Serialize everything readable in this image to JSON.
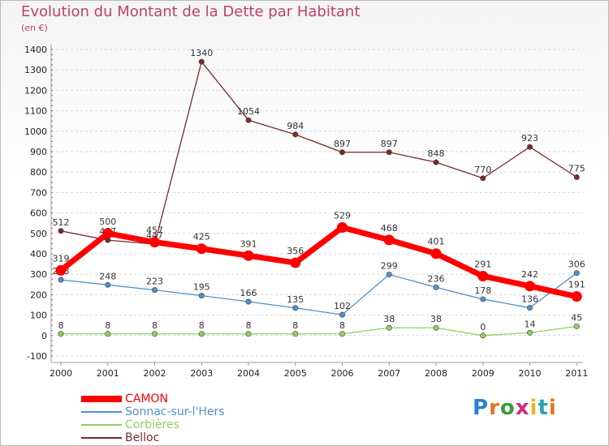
{
  "title": "Evolution du Montant de la Dette par Habitant",
  "unit": "(en €)",
  "logo": "Proxiti",
  "colors": {
    "title": "#c0416c",
    "grid": "#cfd8e8",
    "CAMON": "#ff0000",
    "Sonnac-sur-l'Hers": "#4d91c8",
    "Corbières": "#90d060",
    "Belloc": "#7b2a2a"
  },
  "chart_data": {
    "type": "line",
    "title": "Evolution du Montant de la Dette par Habitant",
    "subtitle": "(en €)",
    "x": [
      "2000",
      "2001",
      "2002",
      "2003",
      "2004",
      "2005",
      "2006",
      "2007",
      "2008",
      "2009",
      "2010",
      "2011"
    ],
    "ylim": [
      -100,
      1400
    ],
    "yticks": [
      -100,
      0,
      100,
      200,
      300,
      400,
      500,
      600,
      700,
      800,
      900,
      1000,
      1100,
      1200,
      1300,
      1400
    ],
    "grid": "horizontal",
    "legend": "bottom-left",
    "series": [
      {
        "name": "CAMON",
        "values": [
          319,
          500,
          457,
          425,
          391,
          356,
          529,
          468,
          401,
          291,
          242,
          191
        ]
      },
      {
        "name": "Sonnac-sur-l'Hers",
        "values": [
          273,
          248,
          223,
          195,
          166,
          135,
          102,
          299,
          236,
          178,
          136,
          306
        ]
      },
      {
        "name": "Corbières",
        "values": [
          8,
          8,
          8,
          8,
          8,
          8,
          8,
          38,
          38,
          0,
          14,
          45
        ]
      },
      {
        "name": "Belloc",
        "values": [
          512,
          467,
          447,
          1340,
          1054,
          984,
          897,
          897,
          848,
          770,
          923,
          775
        ]
      }
    ]
  }
}
